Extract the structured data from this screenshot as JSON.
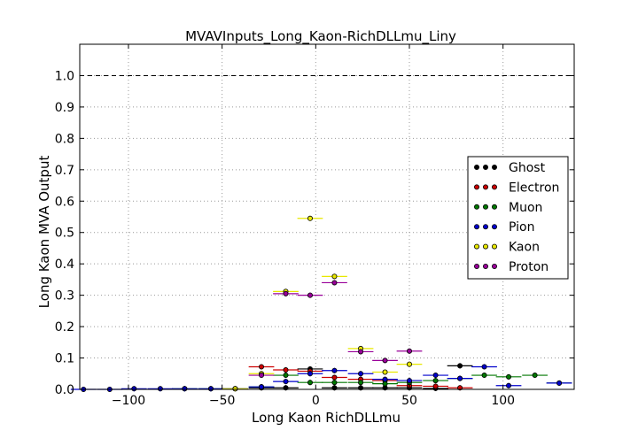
{
  "chart_data": {
    "type": "scatter",
    "title": "MVAVInputs_Long_Kaon-RichDLLmu_Liny",
    "xlabel": "Long Kaon RichDLLmu",
    "ylabel": "Long Kaon MVA Output",
    "xlim": [
      -126,
      138
    ],
    "ylim": [
      0.0,
      1.1
    ],
    "xticks": [
      -100,
      -50,
      0,
      50,
      100
    ],
    "xtick_labels": [
      "−100",
      "−50",
      "0",
      "50",
      "100"
    ],
    "yticks": [
      0.0,
      0.1,
      0.2,
      0.3,
      0.4,
      0.5,
      0.6,
      0.7,
      0.8,
      0.9,
      1.0
    ],
    "ytick_labels": [
      "0.0",
      "0.1",
      "0.2",
      "0.3",
      "0.4",
      "0.5",
      "0.6",
      "0.7",
      "0.8",
      "0.9",
      "1.0"
    ],
    "grid": true,
    "reference_line": {
      "y": 1.0,
      "style": "dashed"
    },
    "legend_position": "right",
    "bin_half_width": 6.8,
    "series": [
      {
        "name": "Ghost",
        "color": "#000000",
        "points": [
          [
            -29,
            0.005
          ],
          [
            -16,
            0.005
          ],
          [
            -3,
            0.065
          ],
          [
            10,
            0.005
          ],
          [
            24,
            0.005
          ],
          [
            37,
            0.005
          ],
          [
            50,
            0.005
          ],
          [
            64,
            0.003
          ],
          [
            77,
            0.075
          ]
        ]
      },
      {
        "name": "Electron",
        "color": "#cc0000",
        "points": [
          [
            -29,
            0.072
          ],
          [
            -16,
            0.062
          ],
          [
            -3,
            0.058
          ],
          [
            10,
            0.038
          ],
          [
            24,
            0.032
          ],
          [
            37,
            0.028
          ],
          [
            50,
            0.012
          ],
          [
            64,
            0.01
          ],
          [
            77,
            0.005
          ]
        ]
      },
      {
        "name": "Muon",
        "color": "#007700",
        "points": [
          [
            -70,
            0.002
          ],
          [
            -56,
            0.002
          ],
          [
            -43,
            0.002
          ],
          [
            -29,
            0.008
          ],
          [
            -16,
            0.045
          ],
          [
            -3,
            0.022
          ],
          [
            10,
            0.022
          ],
          [
            24,
            0.022
          ],
          [
            37,
            0.018
          ],
          [
            50,
            0.022
          ],
          [
            64,
            0.028
          ],
          [
            77,
            0.035
          ],
          [
            90,
            0.045
          ],
          [
            103,
            0.04
          ],
          [
            117,
            0.045
          ],
          [
            130,
            0.02
          ]
        ]
      },
      {
        "name": "Pion",
        "color": "#0000cc",
        "points": [
          [
            -124,
            0.0
          ],
          [
            -110,
            0.0
          ],
          [
            -97,
            0.002
          ],
          [
            -83,
            0.002
          ],
          [
            -70,
            0.002
          ],
          [
            -56,
            0.002
          ],
          [
            -43,
            0.002
          ],
          [
            -29,
            0.008
          ],
          [
            -16,
            0.025
          ],
          [
            -3,
            0.05
          ],
          [
            10,
            0.06
          ],
          [
            24,
            0.05
          ],
          [
            37,
            0.032
          ],
          [
            50,
            0.028
          ],
          [
            64,
            0.045
          ],
          [
            77,
            0.035
          ],
          [
            90,
            0.072
          ],
          [
            103,
            0.012
          ],
          [
            130,
            0.02
          ]
        ]
      },
      {
        "name": "Kaon",
        "color": "#e8e800",
        "points": [
          [
            -43,
            0.002
          ],
          [
            -29,
            0.05
          ],
          [
            -16,
            0.312
          ],
          [
            -3,
            0.545
          ],
          [
            10,
            0.36
          ],
          [
            24,
            0.13
          ],
          [
            37,
            0.055
          ],
          [
            50,
            0.08
          ]
        ]
      },
      {
        "name": "Proton",
        "color": "#990099",
        "points": [
          [
            -29,
            0.045
          ],
          [
            -16,
            0.305
          ],
          [
            -3,
            0.3
          ],
          [
            10,
            0.34
          ],
          [
            24,
            0.12
          ],
          [
            37,
            0.092
          ],
          [
            50,
            0.122
          ]
        ]
      }
    ]
  }
}
